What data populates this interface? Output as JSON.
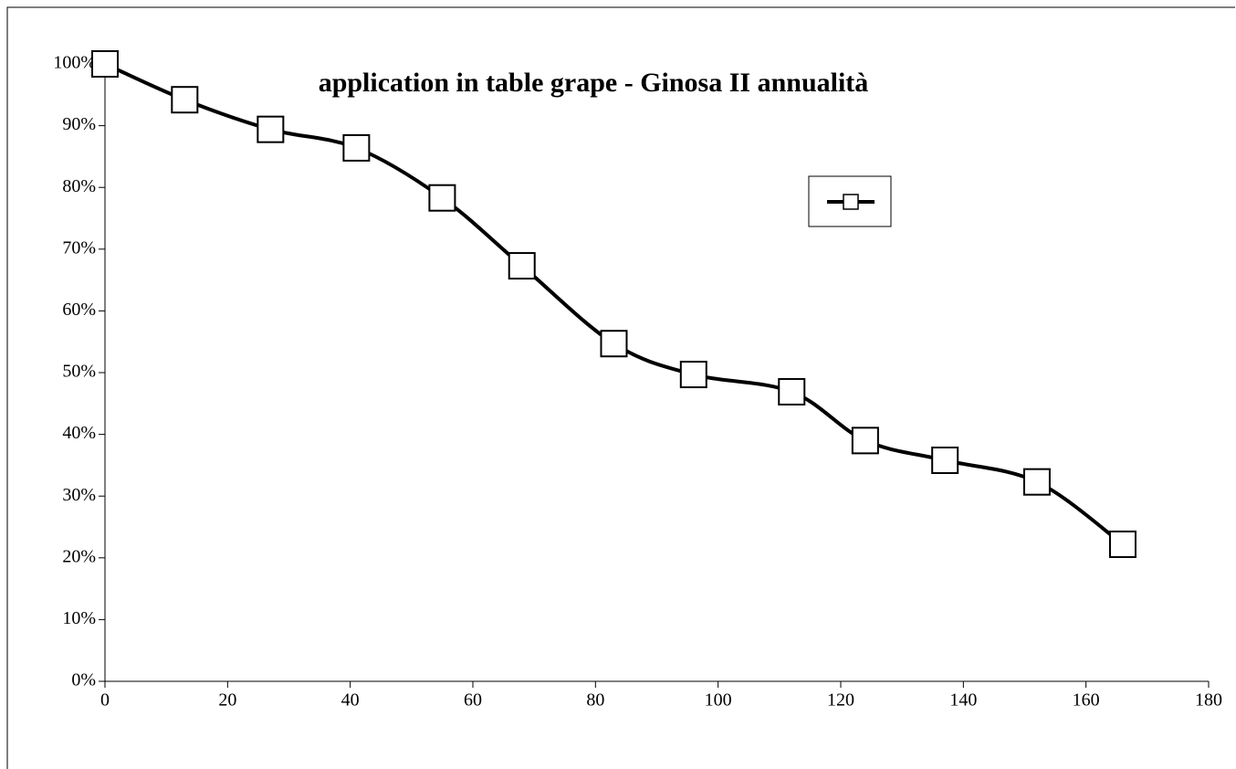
{
  "chart_data": {
    "type": "line",
    "title": "application in table grape - Ginosa II annualità",
    "x": [
      0,
      13,
      27,
      41,
      55,
      68,
      83,
      96,
      112,
      124,
      137,
      152,
      166
    ],
    "series": [
      {
        "color": "#000000",
        "values": [
          100,
          94.2,
          89.4,
          86.4,
          78.3,
          67.3,
          54.7,
          49.7,
          46.9,
          39,
          35.8,
          32.3,
          22.2
        ]
      }
    ],
    "xlim": [
      0,
      180
    ],
    "xticks": [
      0,
      20,
      40,
      60,
      80,
      100,
      120,
      140,
      160,
      180
    ],
    "ylim": [
      0,
      100
    ],
    "yticks": [
      {
        "value": 0,
        "label": "0%"
      },
      {
        "value": 10,
        "label": "10%"
      },
      {
        "value": 20,
        "label": "20%"
      },
      {
        "value": 30,
        "label": "30%"
      },
      {
        "value": 40,
        "label": "40%"
      },
      {
        "value": 50,
        "label": "50%"
      },
      {
        "value": 60,
        "label": "60%"
      },
      {
        "value": 70,
        "label": "70%"
      },
      {
        "value": 80,
        "label": "80%"
      },
      {
        "value": 90,
        "label": "90%"
      },
      {
        "value": 100,
        "label": "100%"
      }
    ],
    "smooth": true,
    "marker": "square",
    "legend": "upper right",
    "grid": false
  }
}
